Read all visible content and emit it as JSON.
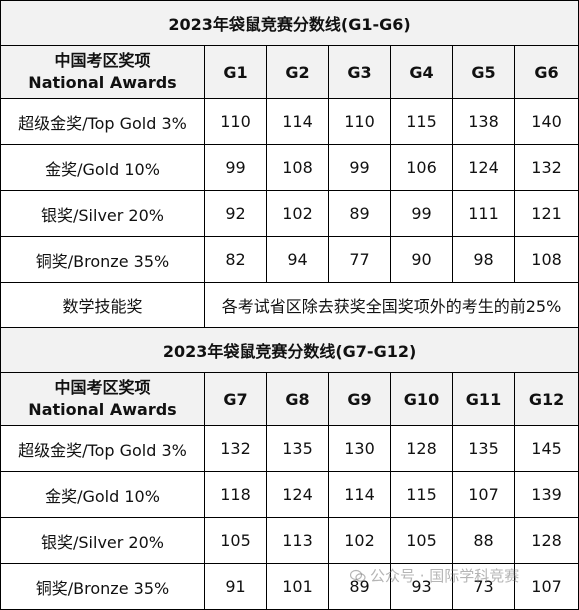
{
  "table1": {
    "title": "2023年袋鼠竞赛分数线(G1-G6)",
    "header_cn": "中国考区奖项",
    "header_en": "National Awards",
    "grades": [
      "G1",
      "G2",
      "G3",
      "G4",
      "G5",
      "G6"
    ],
    "rows": [
      {
        "label": "超级金奖/Top Gold 3%",
        "values": [
          "110",
          "114",
          "110",
          "115",
          "138",
          "140"
        ]
      },
      {
        "label": "金奖/Gold 10%",
        "values": [
          "99",
          "108",
          "99",
          "106",
          "124",
          "132"
        ]
      },
      {
        "label": "银奖/Silver 20%",
        "values": [
          "92",
          "102",
          "89",
          "99",
          "111",
          "121"
        ]
      },
      {
        "label": "铜奖/Bronze 35%",
        "values": [
          "82",
          "94",
          "77",
          "90",
          "98",
          "108"
        ]
      }
    ],
    "note_label": "数学技能奖",
    "note_text": "各考试省区除去获奖全国奖项外的考生的前25%"
  },
  "table2": {
    "title": "2023年袋鼠竞赛分数线(G7-G12)",
    "header_cn": "中国考区奖项",
    "header_en": "National Awards",
    "grades": [
      "G7",
      "G8",
      "G9",
      "G10",
      "G11",
      "G12"
    ],
    "rows": [
      {
        "label": "超级金奖/Top Gold 3%",
        "values": [
          "132",
          "135",
          "130",
          "128",
          "135",
          "145"
        ]
      },
      {
        "label": "金奖/Gold 10%",
        "values": [
          "118",
          "124",
          "114",
          "115",
          "107",
          "139"
        ]
      },
      {
        "label": "银奖/Silver 20%",
        "values": [
          "105",
          "113",
          "102",
          "105",
          "88",
          "128"
        ]
      },
      {
        "label": "铜奖/Bronze 35%",
        "values": [
          "91",
          "101",
          "89",
          "93",
          "73",
          "107"
        ]
      }
    ]
  },
  "watermark": {
    "text": "公众号 · 国际学科竞赛"
  }
}
